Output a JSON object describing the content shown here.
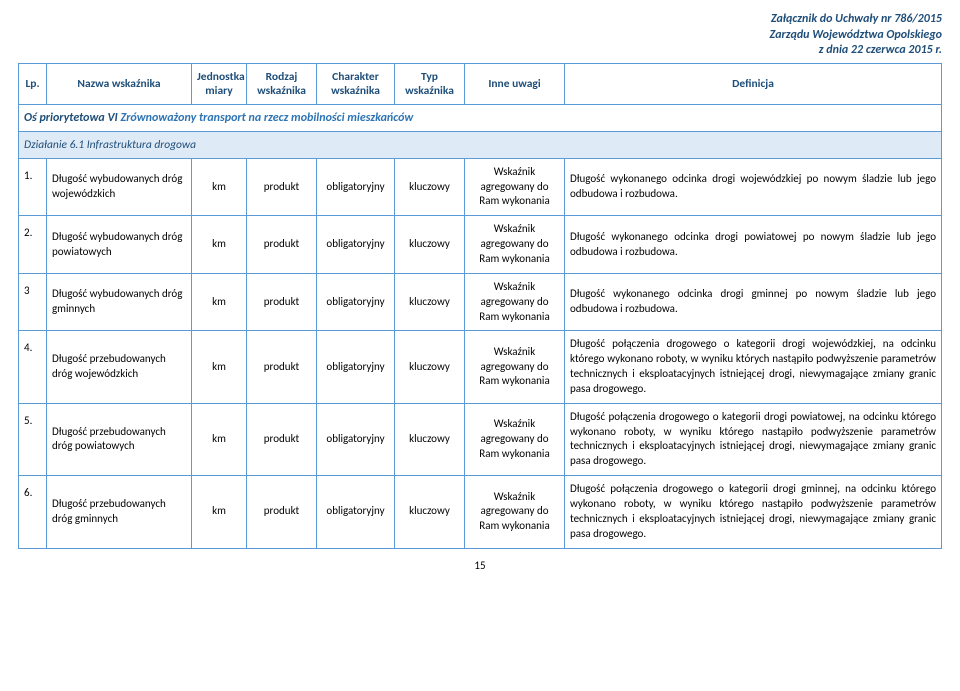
{
  "header": {
    "line1": "Załącznik do Uchwały nr 786/2015",
    "line2": "Zarządu Województwa Opolskiego",
    "line3": "z dnia 22 czerwca 2015 r."
  },
  "columns": {
    "lp": "Lp.",
    "name": "Nazwa wskaźnika",
    "unit": "Jednostka miary",
    "rodzaj": "Rodzaj wskaźnika",
    "charakter": "Charakter wskaźnika",
    "typ": "Typ wskaźnika",
    "uwagi": "Inne uwagi",
    "def": "Definicja"
  },
  "section_prefix": "Oś priorytetowa VI ",
  "section_main": "Zrównoważony transport na rzecz mobilności mieszkańców",
  "subsection": "Działanie 6.1 Infrastruktura drogowa",
  "rows": [
    {
      "lp": "1.",
      "name": "Długość wybudowanych dróg wojewódzkich",
      "unit": "km",
      "rodzaj": "produkt",
      "charakter": "obligatoryjny",
      "typ": "kluczowy",
      "uwagi": "Wskaźnik agregowany do Ram wykonania",
      "def": "Długość wykonanego odcinka drogi wojewódzkiej po nowym śladzie lub jego odbudowa i rozbudowa."
    },
    {
      "lp": "2.",
      "name": "Długość wybudowanych dróg powiatowych",
      "unit": "km",
      "rodzaj": "produkt",
      "charakter": "obligatoryjny",
      "typ": "kluczowy",
      "uwagi": "Wskaźnik agregowany do Ram wykonania",
      "def": "Długość wykonanego odcinka drogi powiatowej po nowym śladzie lub jego odbudowa i rozbudowa."
    },
    {
      "lp": "3",
      "name": "Długość wybudowanych dróg gminnych",
      "unit": "km",
      "rodzaj": "produkt",
      "charakter": "obligatoryjny",
      "typ": "kluczowy",
      "uwagi": "Wskaźnik agregowany do Ram wykonania",
      "def": "Długość wykonanego odcinka drogi gminnej po nowym śladzie lub jego odbudowa i rozbudowa."
    },
    {
      "lp": "4.",
      "name": "Długość przebudowanych dróg wojewódzkich",
      "unit": "km",
      "rodzaj": "produkt",
      "charakter": "obligatoryjny",
      "typ": "kluczowy",
      "uwagi": "Wskaźnik agregowany do Ram wykonania",
      "def": "Długość połączenia drogowego o kategorii drogi wojewódzkiej, na odcinku którego wykonano roboty, w wyniku których nastąpiło podwyższenie parametrów technicznych i eksploatacyjnych istniejącej drogi, niewymagające zmiany granic pasa drogowego."
    },
    {
      "lp": "5.",
      "name": "Długość przebudowanych dróg powiatowych",
      "unit": "km",
      "rodzaj": "produkt",
      "charakter": "obligatoryjny",
      "typ": "kluczowy",
      "uwagi": "Wskaźnik agregowany do Ram wykonania",
      "def": "Długość połączenia drogowego o kategorii drogi powiatowej, na odcinku którego wykonano roboty, w wyniku którego nastąpiło podwyższenie parametrów technicznych i eksploatacyjnych istniejącej drogi, niewymagające zmiany granic pasa drogowego."
    },
    {
      "lp": "6.",
      "name": "Długość przebudowanych dróg gminnych",
      "unit": "km",
      "rodzaj": "produkt",
      "charakter": "obligatoryjny",
      "typ": "kluczowy",
      "uwagi": "Wskaźnik agregowany do Ram wykonania",
      "def": "Długość połączenia drogowego o kategorii drogi gminnej, na odcinku którego wykonano roboty, w wyniku którego nastąpiło podwyższenie parametrów technicznych i eksploatacyjnych istniejącej drogi, niewymagające zmiany granic pasa drogowego."
    }
  ],
  "page_number": "15"
}
